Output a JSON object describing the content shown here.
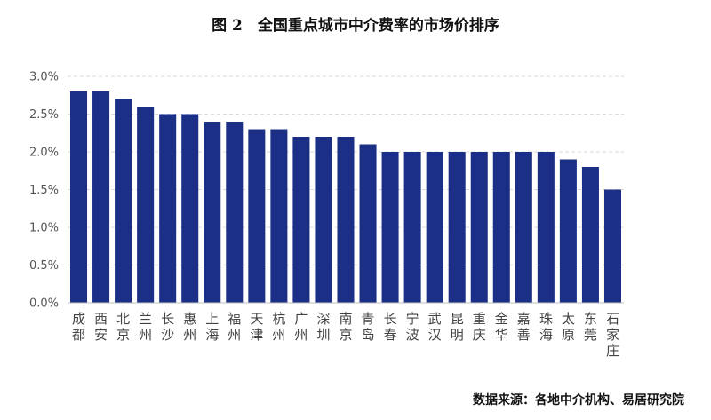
{
  "title": "图 2　全国重点城市中介费率的市场价排序",
  "source": "数据来源：各地中介机构、易居研究院",
  "colors": {
    "bar": "#1b2f87",
    "grid": "#d9d9d9",
    "axis": "#bfbfbf"
  },
  "chart_data": {
    "type": "bar",
    "title": "图 2　全国重点城市中介费率的市场价排序",
    "xlabel": "",
    "ylabel": "",
    "ylim": [
      0,
      3.0
    ],
    "y_ticks": [
      "0.0%",
      "0.5%",
      "1.0%",
      "1.5%",
      "2.0%",
      "2.5%",
      "3.0%"
    ],
    "grid": true,
    "legend": "none",
    "categories": [
      "成都",
      "西安",
      "北京",
      "兰州",
      "长沙",
      "惠州",
      "上海",
      "福州",
      "天津",
      "杭州",
      "广州",
      "深圳",
      "南京",
      "青岛",
      "长春",
      "宁波",
      "武汉",
      "昆明",
      "重庆",
      "金华",
      "嘉善",
      "珠海",
      "太原",
      "东莞",
      "石家庄"
    ],
    "values": [
      2.8,
      2.8,
      2.7,
      2.6,
      2.5,
      2.5,
      2.4,
      2.4,
      2.3,
      2.3,
      2.2,
      2.2,
      2.2,
      2.1,
      2.0,
      2.0,
      2.0,
      2.0,
      2.0,
      2.0,
      2.0,
      2.0,
      1.9,
      1.8,
      1.5
    ],
    "value_unit": "%"
  }
}
